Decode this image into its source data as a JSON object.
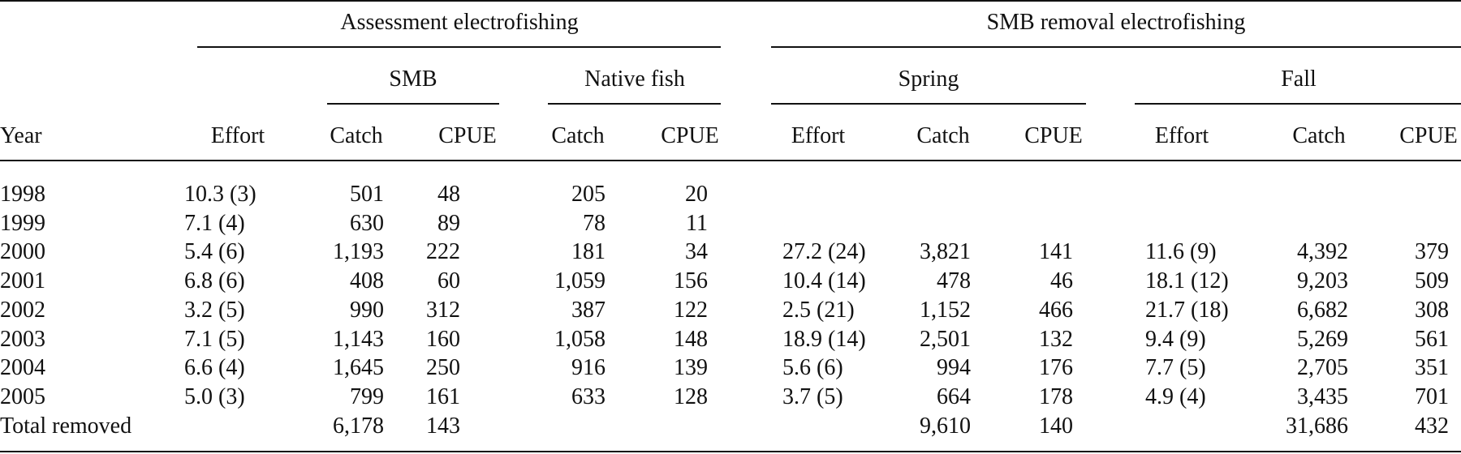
{
  "table": {
    "spanner_assessment": "Assessment electrofishing",
    "spanner_removal": "SMB removal electrofishing",
    "group_smb": "SMB",
    "group_native": "Native fish",
    "group_spring": "Spring",
    "group_fall": "Fall",
    "columns": [
      "Year",
      "Effort",
      "Catch",
      "CPUE",
      "Catch",
      "CPUE",
      "Effort",
      "Catch",
      "CPUE",
      "Effort",
      "Catch",
      "CPUE"
    ],
    "rows": [
      [
        "1998",
        "10.3 (3)",
        "501",
        "48",
        "205",
        "20",
        "",
        "",
        "",
        "",
        "",
        ""
      ],
      [
        "1999",
        "7.1 (4)",
        "630",
        "89",
        "78",
        "11",
        "",
        "",
        "",
        "",
        "",
        ""
      ],
      [
        "2000",
        "5.4 (6)",
        "1,193",
        "222",
        "181",
        "34",
        "27.2 (24)",
        "3,821",
        "141",
        "11.6 (9)",
        "4,392",
        "379"
      ],
      [
        "2001",
        "6.8 (6)",
        "408",
        "60",
        "1,059",
        "156",
        "10.4 (14)",
        "478",
        "46",
        "18.1 (12)",
        "9,203",
        "509"
      ],
      [
        "2002",
        "3.2 (5)",
        "990",
        "312",
        "387",
        "122",
        "2.5 (21)",
        "1,152",
        "466",
        "21.7 (18)",
        "6,682",
        "308"
      ],
      [
        "2003",
        "7.1 (5)",
        "1,143",
        "160",
        "1,058",
        "148",
        "18.9 (14)",
        "2,501",
        "132",
        "9.4 (9)",
        "5,269",
        "561"
      ],
      [
        "2004",
        "6.6 (4)",
        "1,645",
        "250",
        "916",
        "139",
        "5.6 (6)",
        "994",
        "176",
        "7.7 (5)",
        "2,705",
        "351"
      ],
      [
        "2005",
        "5.0 (3)",
        "799",
        "161",
        "633",
        "128",
        "3.7 (5)",
        "664",
        "178",
        "4.9 (4)",
        "3,435",
        "701"
      ],
      [
        "Total removed",
        "",
        "6,178",
        "143",
        "",
        "",
        "",
        "9,610",
        "140",
        "",
        "31,686",
        "432"
      ]
    ]
  }
}
